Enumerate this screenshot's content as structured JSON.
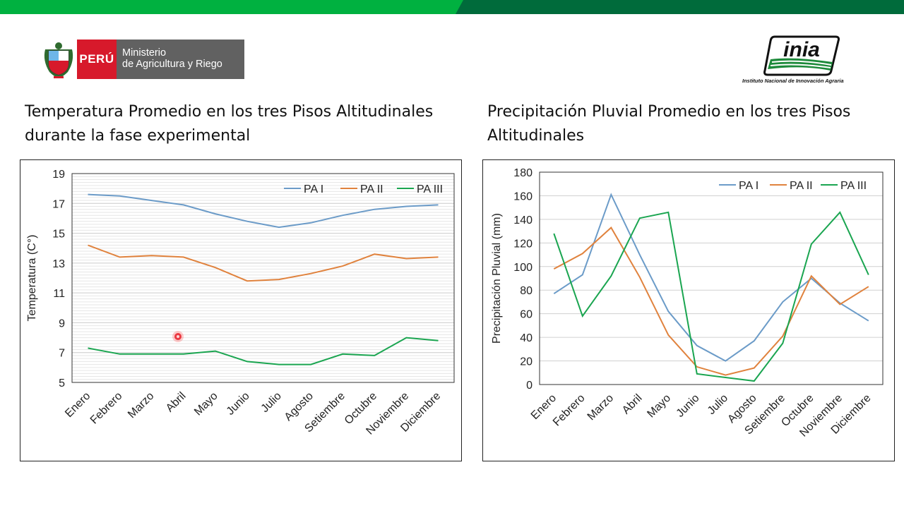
{
  "branding": {
    "peru_label": "PERÚ",
    "ministry_line1": "Ministerio",
    "ministry_line2": "de Agricultura y Riego",
    "inia_logo_text": "inia",
    "inia_caption": "Instituto Nacional de Innovación Agraria",
    "colors": {
      "bar_green": "#00b140",
      "bar_dark_green": "#006b3b",
      "peru_red": "#d7192b",
      "ministry_gray": "#616161"
    }
  },
  "headings": {
    "left_line1": "Temperatura Promedio en los tres Pisos Altitudinales",
    "left_line2": "durante la fase experimental",
    "right_line1": "Precipitación Pluvial Promedio en los tres Pisos",
    "right_line2": "Altitudinales"
  },
  "chart_data": [
    {
      "type": "line",
      "title": "",
      "xlabel": "",
      "ylabel": "Temperatura (C°)",
      "ylim": [
        5,
        19
      ],
      "yticks": [
        5,
        7,
        9,
        11,
        13,
        15,
        17,
        19
      ],
      "grid": true,
      "legend_position": "top-right",
      "categories": [
        "Enero",
        "Febrero",
        "Marzo",
        "Abril",
        "Mayo",
        "Junio",
        "Julio",
        "Agosto",
        "Setiembre",
        "Octubre",
        "Noviembre",
        "Diciembre"
      ],
      "series": [
        {
          "name": "PA I",
          "color": "#6b9bc8",
          "values": [
            17.6,
            17.5,
            17.2,
            16.9,
            16.3,
            15.8,
            15.4,
            15.7,
            16.2,
            16.6,
            16.8,
            16.9
          ]
        },
        {
          "name": "PA II",
          "color": "#e0823d",
          "values": [
            14.2,
            13.4,
            13.5,
            13.4,
            12.7,
            11.8,
            11.9,
            12.3,
            12.8,
            13.6,
            13.3,
            13.4
          ]
        },
        {
          "name": "PA III",
          "color": "#1aa550",
          "values": [
            7.3,
            6.9,
            6.9,
            6.9,
            7.1,
            6.4,
            6.2,
            6.2,
            6.9,
            6.8,
            8.0,
            7.8
          ]
        }
      ]
    },
    {
      "type": "line",
      "title": "",
      "xlabel": "",
      "ylabel": "Precipitación Pluvial (mm)",
      "ylim": [
        0,
        180
      ],
      "yticks": [
        0,
        20,
        40,
        60,
        80,
        100,
        120,
        140,
        160,
        180
      ],
      "grid": true,
      "legend_position": "top-right",
      "categories": [
        "Enero",
        "Febrero",
        "Marzo",
        "Abril",
        "Mayo",
        "Junio",
        "Julio",
        "Agosto",
        "Setiembre",
        "Octubre",
        "Noviembre",
        "Diciembre"
      ],
      "series": [
        {
          "name": "PA I",
          "color": "#6b9bc8",
          "values": [
            77,
            93,
            161,
            110,
            62,
            33,
            20,
            37,
            70,
            90,
            69,
            54
          ]
        },
        {
          "name": "PA II",
          "color": "#e0823d",
          "values": [
            98,
            111,
            133,
            91,
            42,
            15,
            8,
            14,
            41,
            92,
            68,
            83
          ]
        },
        {
          "name": "PA III",
          "color": "#1aa550",
          "values": [
            128,
            58,
            92,
            141,
            146,
            9,
            6,
            3,
            35,
            119,
            146,
            93
          ]
        }
      ]
    }
  ]
}
